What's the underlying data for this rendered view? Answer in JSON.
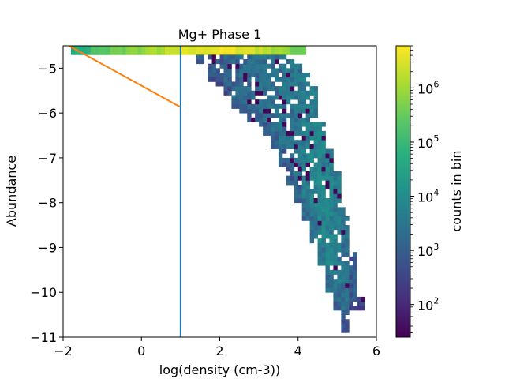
{
  "chart_data": {
    "type": "heatmap",
    "title": "Mg+ Phase 1",
    "xlabel": "log(density (cm-3))",
    "ylabel": "Abundance",
    "xlim": [
      -2,
      6
    ],
    "ylim": [
      -11,
      -4.5
    ],
    "xticks": [
      -2,
      0,
      2,
      4,
      6
    ],
    "xtick_labels": [
      "−2",
      "0",
      "2",
      "4",
      "6"
    ],
    "yticks": [
      -11,
      -10,
      -9,
      -8,
      -7,
      -6,
      -5
    ],
    "ytick_labels": [
      "−11",
      "−10",
      "−9",
      "−8",
      "−7",
      "−6",
      "−5"
    ],
    "colorbar": {
      "label": "counts in bin",
      "scale": "log",
      "range": [
        25,
        6000000
      ],
      "colormap": "viridis",
      "ticks": [
        100,
        1000,
        10000,
        100000,
        1000000
      ],
      "tick_bases": [
        "10",
        "10",
        "10",
        "10",
        "10"
      ],
      "tick_exponents": [
        "2",
        "3",
        "4",
        "5",
        "6"
      ]
    },
    "bin_size": {
      "x": 0.1,
      "y": 0.1
    },
    "top_band": {
      "y_range": [
        -4.7,
        -4.5
      ],
      "segments": [
        {
          "x_range": [
            -1.8,
            4.2
          ],
          "counts": [
            60000,
            200000,
            400000,
            700000,
            1200000,
            2000000,
            3000000,
            4000000,
            4500000,
            3500000,
            2000000,
            1000000,
            400000
          ]
        }
      ]
    },
    "distribution_columns": [
      {
        "x": 1.5,
        "y_top": -4.7,
        "y_bottom": -4.9,
        "count": 1500
      },
      {
        "x": 1.8,
        "y_top": -4.7,
        "y_bottom": -5.3,
        "count": 1200
      },
      {
        "x": 2.0,
        "y_top": -4.7,
        "y_bottom": -5.4,
        "count": 1500
      },
      {
        "x": 2.2,
        "y_top": -4.7,
        "y_bottom": -5.6,
        "count": 1800
      },
      {
        "x": 2.4,
        "y_top": -4.7,
        "y_bottom": -5.9,
        "count": 2000
      },
      {
        "x": 2.6,
        "y_top": -4.7,
        "y_bottom": -6.0,
        "count": 2200
      },
      {
        "x": 2.8,
        "y_top": -4.7,
        "y_bottom": -6.2,
        "count": 2500
      },
      {
        "x": 3.0,
        "y_top": -4.7,
        "y_bottom": -6.3,
        "count": 2800
      },
      {
        "x": 3.2,
        "y_top": -4.7,
        "y_bottom": -6.5,
        "count": 3000
      },
      {
        "x": 3.4,
        "y_top": -4.7,
        "y_bottom": -6.8,
        "count": 3200
      },
      {
        "x": 3.6,
        "y_top": -4.7,
        "y_bottom": -7.2,
        "count": 3500
      },
      {
        "x": 3.8,
        "y_top": -4.8,
        "y_bottom": -7.6,
        "count": 3800
      },
      {
        "x": 4.0,
        "y_top": -4.9,
        "y_bottom": -8.0,
        "count": 4500
      },
      {
        "x": 4.2,
        "y_top": -5.1,
        "y_bottom": -8.4,
        "count": 6000
      },
      {
        "x": 4.4,
        "y_top": -5.4,
        "y_bottom": -8.9,
        "count": 8000
      },
      {
        "x": 4.6,
        "y_top": -6.2,
        "y_bottom": -9.4,
        "count": 9000
      },
      {
        "x": 4.8,
        "y_top": -6.8,
        "y_bottom": -10.0,
        "count": 8000
      },
      {
        "x": 5.0,
        "y_top": -7.3,
        "y_bottom": -10.4,
        "count": 6000
      },
      {
        "x": 5.2,
        "y_top": -8.1,
        "y_bottom": -10.9,
        "count": 3000
      },
      {
        "x": 5.4,
        "y_top": -9.1,
        "y_bottom": -10.4,
        "count": 1200
      },
      {
        "x": 5.6,
        "y_top": -10.1,
        "y_bottom": -10.4,
        "count": 400
      }
    ],
    "overlay_lines": [
      {
        "color": "#ff7f0e",
        "x": [
          -1.85,
          1.0
        ],
        "y": [
          -4.5,
          -5.87
        ]
      },
      {
        "color": "#1f77b4",
        "x": [
          1.0,
          1.0
        ],
        "y": [
          -11,
          -4.5
        ]
      }
    ]
  }
}
